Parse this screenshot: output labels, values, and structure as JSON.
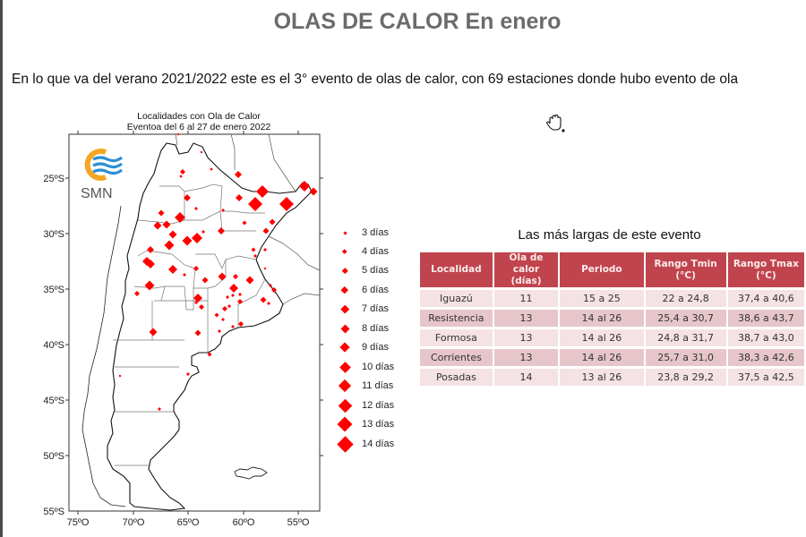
{
  "slide": {
    "title": "OLAS DE CALOR En enero",
    "subtitle": "En lo que va del verano 2021/2022 este es el 3° evento de olas de calor, con  69 estaciones donde hubo evento de ola"
  },
  "map": {
    "title_line1": "Localidades con Ola de Calor",
    "title_line2": "Eventoa del 6 al 27 de enero 2022",
    "logo_text": "SMN",
    "lat_ticks": [
      "25ºS",
      "30ºS",
      "35ºS",
      "40ºS",
      "45ºS",
      "50ºS",
      "55ºS"
    ],
    "lon_ticks": [
      "75ºO",
      "70ºO",
      "65ºO",
      "60ºO",
      "55ºO"
    ],
    "marker_color": "#ff0000"
  },
  "legend": {
    "items": [
      {
        "label": "3 días",
        "size": 3
      },
      {
        "label": "4 días",
        "size": 4
      },
      {
        "label": "5 días",
        "size": 5
      },
      {
        "label": "6 días",
        "size": 6
      },
      {
        "label": "7 días",
        "size": 7
      },
      {
        "label": "8 días",
        "size": 8
      },
      {
        "label": "9 días",
        "size": 9
      },
      {
        "label": "10 días",
        "size": 10
      },
      {
        "label": "11 días",
        "size": 11
      },
      {
        "label": "12 días",
        "size": 12
      },
      {
        "label": "13 días",
        "size": 13
      },
      {
        "label": "14 días",
        "size": 14
      }
    ]
  },
  "chart_data": {
    "type": "table",
    "title": "Las más largas de este evento",
    "columns": [
      "Localidad",
      "Ola de calor (días)",
      "Periodo",
      "Rango Tmin (°C)",
      "Rango Tmax (°C)"
    ],
    "rows": [
      [
        "Iguazú",
        "11",
        "15 a 25",
        "22 a 24,8",
        "37,4 a 40,6"
      ],
      [
        "Resistencia",
        "13",
        "14 al 26",
        "25,4 a 30,7",
        "38,6 a 43,7"
      ],
      [
        "Formosa",
        "13",
        "14 al 26",
        "24,8 a 31,7",
        "38,7 a 43,0"
      ],
      [
        "Corrientes",
        "13",
        "14 al 26",
        "25,7 a 31,0",
        "38,3 a 42,6"
      ],
      [
        "Posadas",
        "14",
        "13 al 26",
        "23,8  a 29,2",
        "37,5 a 42,5"
      ]
    ],
    "header_color": "#c0444e"
  },
  "table": {
    "title": "Las más largas de este evento",
    "headers": {
      "h1": "Localidad",
      "h2a": "Ola de calor",
      "h2b": "(días)",
      "h3": "Periodo",
      "h4a": "Rango Tmin",
      "h4b": "(°C)",
      "h5a": "Rango Tmax",
      "h5b": "(°C)"
    },
    "rows": [
      {
        "localidad": "Iguazú",
        "dias": "11",
        "periodo": "15 a 25",
        "tmin": "22 a 24,8",
        "tmax": "37,4 a 40,6"
      },
      {
        "localidad": "Resistencia",
        "dias": "13",
        "periodo": "14 al 26",
        "tmin": "25,4 a 30,7",
        "tmax": "38,6 a 43,7"
      },
      {
        "localidad": "Formosa",
        "dias": "13",
        "periodo": "14 al 26",
        "tmin": "24,8 a 31,7",
        "tmax": "38,7 a 43,0"
      },
      {
        "localidad": "Corrientes",
        "dias": "13",
        "periodo": "14 al 26",
        "tmin": "25,7 a 31,0",
        "tmax": "38,3 a 42,6"
      },
      {
        "localidad": "Posadas",
        "dias": "14",
        "periodo": "13 al 26",
        "tmin": "23,8  a 29,2",
        "tmax": "37,5 a 42,5"
      }
    ]
  }
}
